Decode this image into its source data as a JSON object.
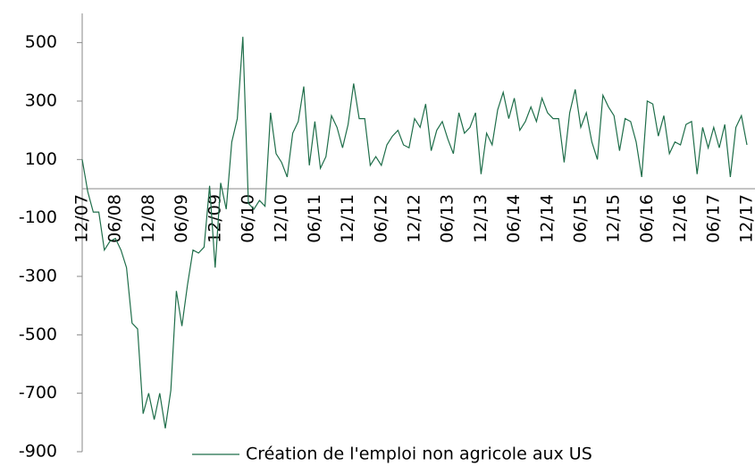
{
  "chart_data": {
    "type": "line",
    "categories": [
      "12/07",
      null,
      null,
      null,
      null,
      null,
      "06/08",
      null,
      null,
      null,
      null,
      null,
      "12/08",
      null,
      null,
      null,
      null,
      null,
      "06/09",
      null,
      null,
      null,
      null,
      null,
      "12/09",
      null,
      null,
      null,
      null,
      null,
      "06/10",
      null,
      null,
      null,
      null,
      null,
      "12/10",
      null,
      null,
      null,
      null,
      null,
      "06/11",
      null,
      null,
      null,
      null,
      null,
      "12/11",
      null,
      null,
      null,
      null,
      null,
      "06/12",
      null,
      null,
      null,
      null,
      null,
      "12/12",
      null,
      null,
      null,
      null,
      null,
      "06/13",
      null,
      null,
      null,
      null,
      null,
      "12/13",
      null,
      null,
      null,
      null,
      null,
      "06/14",
      null,
      null,
      null,
      null,
      null,
      "12/14",
      null,
      null,
      null,
      null,
      null,
      "06/15",
      null,
      null,
      null,
      null,
      null,
      "12/15",
      null,
      null,
      null,
      null,
      null,
      "06/16",
      null,
      null,
      null,
      null,
      null,
      "12/16",
      null,
      null,
      null,
      null,
      null,
      "06/17",
      null,
      null,
      null,
      null,
      null,
      "12/17"
    ],
    "series": [
      {
        "name": "Création de l'emploi non agricole aux US",
        "color": "#1f6e4a",
        "values": [
          100,
          -10,
          -80,
          -80,
          -210,
          -180,
          -170,
          -210,
          -270,
          -460,
          -480,
          -770,
          -700,
          -790,
          -700,
          -820,
          -690,
          -350,
          -470,
          -330,
          -210,
          -220,
          -200,
          10,
          -270,
          20,
          -70,
          160,
          240,
          520,
          -50,
          -70,
          -40,
          -60,
          260,
          120,
          90,
          40,
          190,
          230,
          350,
          80,
          230,
          70,
          110,
          250,
          210,
          140,
          220,
          360,
          240,
          240,
          80,
          110,
          80,
          150,
          180,
          200,
          150,
          140,
          240,
          210,
          290,
          130,
          200,
          230,
          170,
          120,
          260,
          190,
          210,
          260,
          50,
          190,
          150,
          270,
          330,
          240,
          310,
          200,
          230,
          280,
          230,
          310,
          260,
          240,
          240,
          90,
          260,
          340,
          210,
          260,
          160,
          100,
          320,
          280,
          250,
          130,
          240,
          230,
          160,
          40,
          300,
          290,
          180,
          250,
          120,
          160,
          150,
          220,
          230,
          50,
          210,
          140,
          210,
          140,
          220,
          40,
          210,
          250,
          150
        ]
      }
    ],
    "ylim": [
      -900,
      600
    ],
    "yticks": [
      -900,
      -700,
      -500,
      -300,
      -100,
      100,
      300,
      500
    ],
    "grid": false,
    "legend": "bottom"
  }
}
